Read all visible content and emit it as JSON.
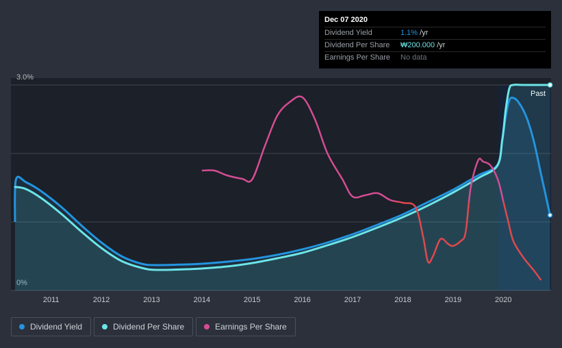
{
  "tooltip": {
    "date": "Dec 07 2020",
    "rows": [
      {
        "label": "Dividend Yield",
        "value": "1.1%",
        "unit": "/yr"
      },
      {
        "label": "Dividend Per Share",
        "value": "₩200.000",
        "unit": "/yr"
      },
      {
        "label": "Earnings Per Share",
        "value": "No data",
        "unit": ""
      }
    ]
  },
  "legend": [
    {
      "label": "Dividend Yield",
      "color": "#2394df"
    },
    {
      "label": "Dividend Per Share",
      "color": "#6ce5e8"
    },
    {
      "label": "Earnings Per Share",
      "color": "#d44d94"
    }
  ],
  "colors": {
    "background": "#2b303b",
    "plot": "#1c2028",
    "past_region": "#162236",
    "grid": "#3f4450",
    "yield": "#2394df",
    "dps": "#6ce5e8",
    "eps_positive": "#d44d94",
    "eps_negative": "#e0484d"
  },
  "chart_data": {
    "type": "line",
    "title": "",
    "xlabel": "",
    "ylabel": "",
    "xlim": [
      2010.2,
      2020.95
    ],
    "ylim": [
      0,
      3.0
    ],
    "y_tick_labels": [
      {
        "value": 3.0,
        "label": "3.0%"
      },
      {
        "value": 0,
        "label": "0%"
      }
    ],
    "x_ticks": [
      2011,
      2012,
      2013,
      2014,
      2015,
      2016,
      2017,
      2018,
      2019,
      2020
    ],
    "x_tick_labels": [
      "2011",
      "2012",
      "2013",
      "2014",
      "2015",
      "2016",
      "2017",
      "2018",
      "2019",
      "2020"
    ],
    "past_label": "Past",
    "past_start": 2019.9,
    "series": [
      {
        "name": "Dividend Yield",
        "color": "#2394df",
        "filled": true,
        "x": [
          2010.28,
          2010.3,
          2010.5,
          2010.8,
          2011.2,
          2011.6,
          2012.0,
          2012.4,
          2012.8,
          2013.1,
          2013.7,
          2014.0,
          2014.5,
          2015.0,
          2015.5,
          2016.0,
          2016.5,
          2017.0,
          2017.5,
          2018.0,
          2018.5,
          2019.0,
          2019.5,
          2019.88,
          2019.98,
          2020.05,
          2020.12,
          2020.2,
          2020.3,
          2020.45,
          2020.6,
          2020.75,
          2020.93
        ],
        "values": [
          1.0,
          1.62,
          1.58,
          1.45,
          1.22,
          0.95,
          0.7,
          0.5,
          0.39,
          0.37,
          0.38,
          0.39,
          0.42,
          0.46,
          0.52,
          0.6,
          0.7,
          0.82,
          0.96,
          1.11,
          1.29,
          1.47,
          1.68,
          1.83,
          2.2,
          2.55,
          2.78,
          2.81,
          2.75,
          2.55,
          2.2,
          1.7,
          1.1
        ]
      },
      {
        "name": "Dividend Per Share",
        "color": "#6ce5e8",
        "filled": true,
        "x": [
          2010.28,
          2010.3,
          2010.5,
          2010.8,
          2011.2,
          2011.6,
          2012.0,
          2012.4,
          2012.8,
          2013.1,
          2013.7,
          2014.0,
          2014.5,
          2015.0,
          2015.5,
          2016.0,
          2016.5,
          2017.0,
          2017.5,
          2018.0,
          2018.5,
          2019.0,
          2019.5,
          2019.88,
          2019.98,
          2020.05,
          2020.12,
          2020.2,
          2020.4,
          2020.93
        ],
        "values": [
          1.5,
          1.51,
          1.48,
          1.35,
          1.12,
          0.86,
          0.62,
          0.43,
          0.33,
          0.3,
          0.31,
          0.32,
          0.35,
          0.4,
          0.47,
          0.55,
          0.66,
          0.78,
          0.92,
          1.07,
          1.24,
          1.43,
          1.64,
          1.82,
          2.2,
          2.65,
          2.95,
          3.0,
          3.0,
          3.0
        ]
      },
      {
        "name": "Earnings Per Share",
        "color": "#d44d94",
        "negative_color": "#e0484d",
        "threshold": 1.3,
        "x": [
          2014.0,
          2014.25,
          2014.5,
          2014.8,
          2015.0,
          2015.25,
          2015.5,
          2015.75,
          2016.0,
          2016.25,
          2016.5,
          2016.8,
          2017.0,
          2017.25,
          2017.5,
          2017.75,
          2018.0,
          2018.25,
          2018.4,
          2018.5,
          2018.6,
          2018.75,
          2018.9,
          2019.0,
          2019.15,
          2019.25,
          2019.35,
          2019.5,
          2019.6,
          2019.75,
          2019.9,
          2020.0,
          2020.1,
          2020.2,
          2020.4,
          2020.6,
          2020.75
        ],
        "values": [
          1.75,
          1.75,
          1.68,
          1.63,
          1.62,
          2.1,
          2.55,
          2.75,
          2.82,
          2.5,
          2.0,
          1.62,
          1.37,
          1.39,
          1.42,
          1.32,
          1.28,
          1.22,
          0.8,
          0.42,
          0.5,
          0.75,
          0.68,
          0.65,
          0.72,
          0.85,
          1.5,
          1.9,
          1.88,
          1.82,
          1.6,
          1.3,
          1.0,
          0.72,
          0.48,
          0.3,
          0.15
        ]
      }
    ]
  }
}
